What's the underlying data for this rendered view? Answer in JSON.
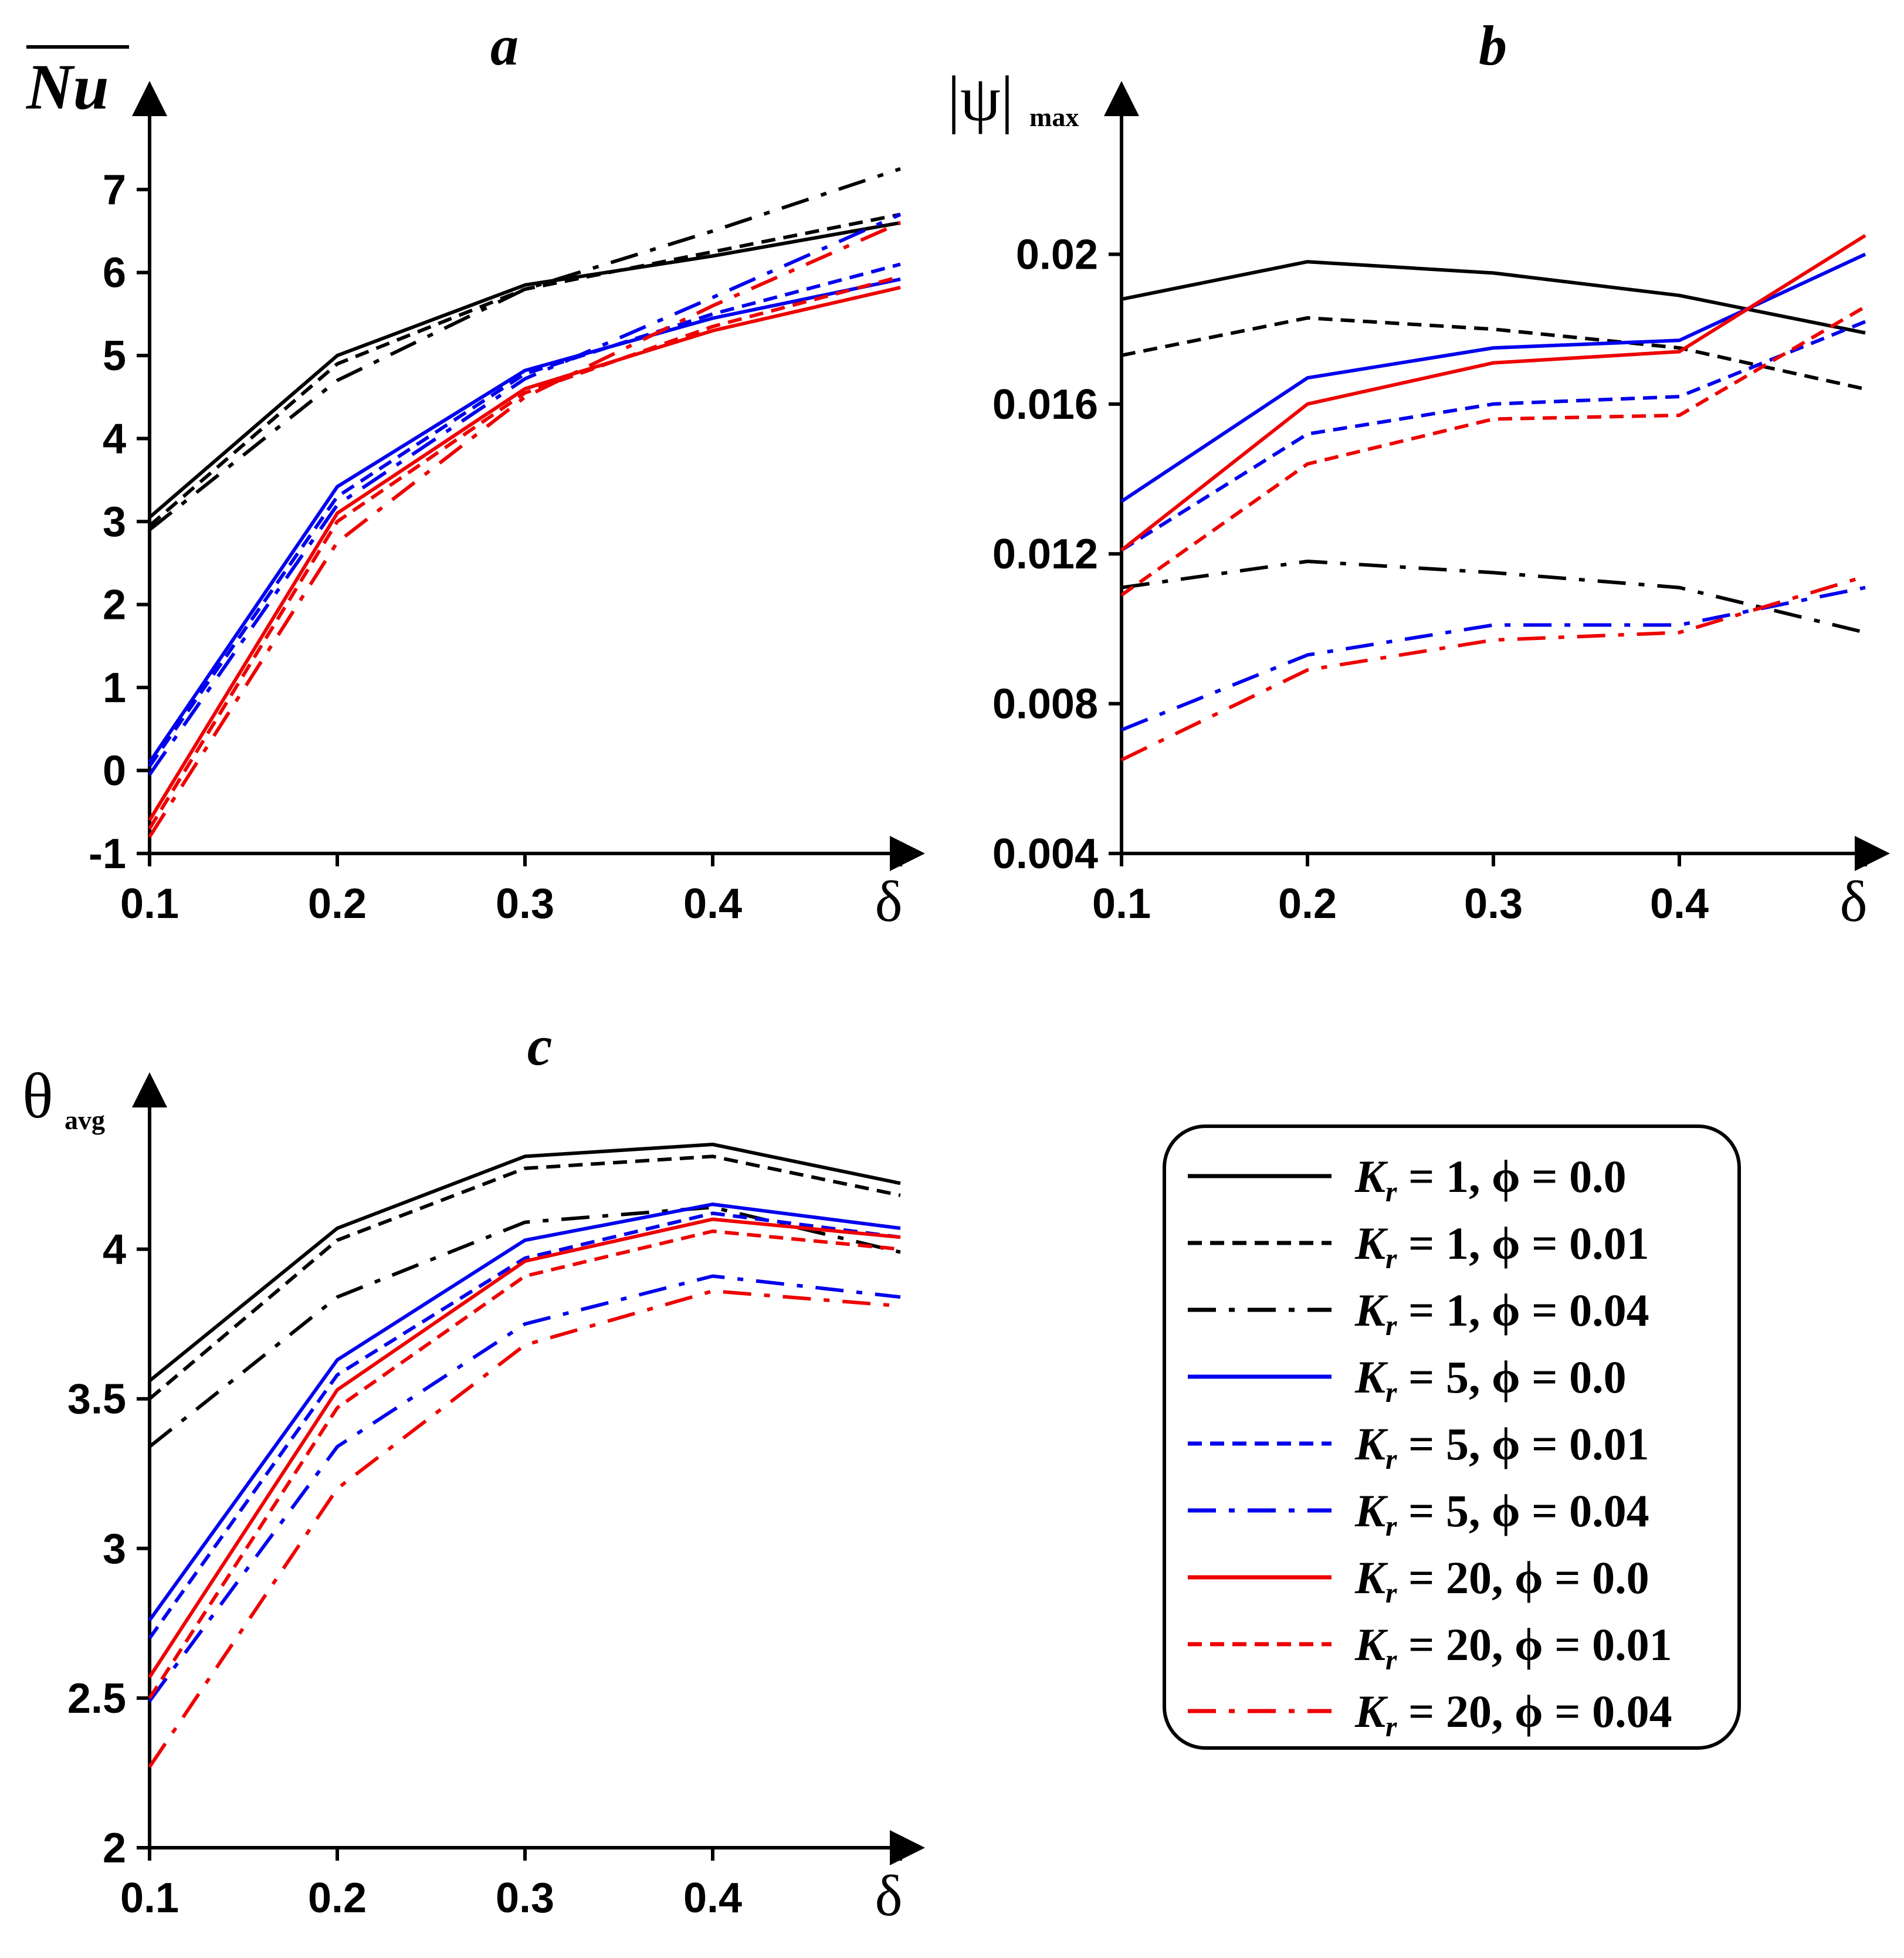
{
  "legend": [
    {
      "k": "K",
      "sub": "r",
      "rest": " = 1, ϕ = 0.0",
      "color": "#000000",
      "style": "solid"
    },
    {
      "k": "K",
      "sub": "r",
      "rest": " = 1, ϕ = 0.01",
      "color": "#000000",
      "style": "dash"
    },
    {
      "k": "K",
      "sub": "r",
      "rest": " = 1, ϕ = 0.04",
      "color": "#000000",
      "style": "dashdot"
    },
    {
      "k": "K",
      "sub": "r",
      "rest": " = 5, ϕ = 0.0",
      "color": "#0000ee",
      "style": "solid"
    },
    {
      "k": "K",
      "sub": "r",
      "rest": " = 5, ϕ = 0.01",
      "color": "#0000ee",
      "style": "dash"
    },
    {
      "k": "K",
      "sub": "r",
      "rest": " = 5, ϕ = 0.04",
      "color": "#0000ee",
      "style": "dashdot"
    },
    {
      "k": "K",
      "sub": "r",
      "rest": " = 20, ϕ = 0.0",
      "color": "#ee0000",
      "style": "solid"
    },
    {
      "k": "K",
      "sub": "r",
      "rest": " = 20, ϕ = 0.01",
      "color": "#ee0000",
      "style": "dash"
    },
    {
      "k": "K",
      "sub": "r",
      "rest": " = 20, ϕ = 0.04",
      "color": "#ee0000",
      "style": "dashdot"
    }
  ],
  "chart_data": [
    {
      "panel": "a",
      "type": "line",
      "title": "a",
      "ylabel": "Nu",
      "xlabel": "δ",
      "x": [
        0.1,
        0.2,
        0.3,
        0.4,
        0.5
      ],
      "xlim": [
        0.1,
        0.5
      ],
      "ylim": [
        -1,
        7.8
      ],
      "xticks": [
        "0.1",
        "0.2",
        "0.3",
        "0.4"
      ],
      "xtick_values": [
        0.1,
        0.2,
        0.3,
        0.4
      ],
      "yticks": [
        "-1",
        "0",
        "1",
        "2",
        "3",
        "4",
        "5",
        "6",
        "7"
      ],
      "ytick_values": [
        -1,
        0,
        1,
        2,
        3,
        4,
        5,
        6,
        7
      ],
      "series": [
        {
          "name": "Kr = 1, ϕ = 0.0",
          "values": [
            3.05,
            5.0,
            5.85,
            6.2,
            6.6
          ]
        },
        {
          "name": "Kr = 1, ϕ = 0.01",
          "values": [
            2.95,
            4.9,
            5.8,
            6.25,
            6.7
          ]
        },
        {
          "name": "Kr = 1, ϕ = 0.04",
          "values": [
            2.9,
            4.7,
            5.8,
            6.5,
            7.25
          ]
        },
        {
          "name": "Kr = 5, ϕ = 0.0",
          "values": [
            0.1,
            3.42,
            4.82,
            5.45,
            5.92
          ]
        },
        {
          "name": "Kr = 5, ϕ = 0.01",
          "values": [
            0.05,
            3.3,
            4.78,
            5.5,
            6.1
          ]
        },
        {
          "name": "Kr = 5, ϕ = 0.04",
          "values": [
            -0.05,
            3.2,
            4.72,
            5.7,
            6.7
          ]
        },
        {
          "name": "Kr = 20, ϕ = 0.0",
          "values": [
            -0.6,
            3.1,
            4.6,
            5.3,
            5.82
          ]
        },
        {
          "name": "Kr = 20, ϕ = 0.01",
          "values": [
            -0.7,
            3.0,
            4.55,
            5.35,
            5.95
          ]
        },
        {
          "name": "Kr = 20, ϕ = 0.04",
          "values": [
            -0.8,
            2.75,
            4.5,
            5.6,
            6.6
          ]
        }
      ]
    },
    {
      "panel": "b",
      "type": "line",
      "title": "b",
      "ylabel": "|ψ|",
      "ylabel_sub": "max",
      "xlabel": "δ",
      "x": [
        0.1,
        0.2,
        0.3,
        0.4,
        0.5
      ],
      "xlim": [
        0.1,
        0.5
      ],
      "ylim": [
        0.004,
        0.0235
      ],
      "xticks": [
        "0.1",
        "0.2",
        "0.3",
        "0.4"
      ],
      "xtick_values": [
        0.1,
        0.2,
        0.3,
        0.4
      ],
      "yticks": [
        "0.004",
        "0.008",
        "0.012",
        "0.016",
        "0.02"
      ],
      "ytick_values": [
        0.004,
        0.008,
        0.012,
        0.016,
        0.02
      ],
      "series": [
        {
          "name": "Kr = 1, ϕ = 0.0",
          "values": [
            0.0188,
            0.0198,
            0.0195,
            0.0189,
            0.0179
          ]
        },
        {
          "name": "Kr = 1, ϕ = 0.01",
          "values": [
            0.0173,
            0.0183,
            0.018,
            0.0175,
            0.0164
          ]
        },
        {
          "name": "Kr = 1, ϕ = 0.04",
          "values": [
            0.0111,
            0.0118,
            0.0115,
            0.0111,
            0.0099
          ]
        },
        {
          "name": "Kr = 5, ϕ = 0.0",
          "values": [
            0.0134,
            0.0167,
            0.0175,
            0.0177,
            0.02
          ]
        },
        {
          "name": "Kr = 5, ϕ = 0.01",
          "values": [
            0.0121,
            0.0152,
            0.016,
            0.0162,
            0.0182
          ]
        },
        {
          "name": "Kr = 5, ϕ = 0.04",
          "values": [
            0.0073,
            0.0093,
            0.0101,
            0.0101,
            0.0111
          ]
        },
        {
          "name": "Kr = 20, ϕ = 0.0",
          "values": [
            0.0121,
            0.016,
            0.0171,
            0.0174,
            0.0205
          ]
        },
        {
          "name": "Kr = 20, ϕ = 0.01",
          "values": [
            0.0109,
            0.0144,
            0.0156,
            0.0157,
            0.0186
          ]
        },
        {
          "name": "Kr = 20, ϕ = 0.04",
          "values": [
            0.0065,
            0.0089,
            0.0097,
            0.0099,
            0.0114
          ]
        }
      ]
    },
    {
      "panel": "c",
      "type": "line",
      "title": "c",
      "ylabel": "θ",
      "ylabel_sub": "avg",
      "xlabel": "δ",
      "x": [
        0.1,
        0.2,
        0.3,
        0.4,
        0.5
      ],
      "xlim": [
        0.1,
        0.5
      ],
      "ylim": [
        2.0,
        4.45
      ],
      "xticks": [
        "0.1",
        "0.2",
        "0.3",
        "0.4"
      ],
      "xtick_values": [
        0.1,
        0.2,
        0.3,
        0.4
      ],
      "yticks": [
        "2",
        "2.5",
        "3",
        "3.5",
        "4"
      ],
      "ytick_values": [
        2.0,
        2.5,
        3.0,
        3.5,
        4.0
      ],
      "series": [
        {
          "name": "Kr = 1, ϕ = 0.0",
          "values": [
            3.56,
            4.07,
            4.31,
            4.35,
            4.22
          ]
        },
        {
          "name": "Kr = 1, ϕ = 0.01",
          "values": [
            3.5,
            4.03,
            4.27,
            4.31,
            4.18
          ]
        },
        {
          "name": "Kr = 1, ϕ = 0.04",
          "values": [
            3.34,
            3.84,
            4.09,
            4.14,
            3.99
          ]
        },
        {
          "name": "Kr = 5, ϕ = 0.0",
          "values": [
            2.76,
            3.63,
            4.03,
            4.15,
            4.07
          ]
        },
        {
          "name": "Kr = 5, ϕ = 0.01",
          "values": [
            2.7,
            3.58,
            3.97,
            4.12,
            4.04
          ]
        },
        {
          "name": "Kr = 5, ϕ = 0.04",
          "values": [
            2.49,
            3.34,
            3.75,
            3.91,
            3.84
          ]
        },
        {
          "name": "Kr = 20, ϕ = 0.0",
          "values": [
            2.57,
            3.53,
            3.96,
            4.1,
            4.04
          ]
        },
        {
          "name": "Kr = 20, ϕ = 0.01",
          "values": [
            2.5,
            3.47,
            3.91,
            4.06,
            4.0
          ]
        },
        {
          "name": "Kr = 20, ϕ = 0.04",
          "values": [
            2.27,
            3.2,
            3.68,
            3.86,
            3.81
          ]
        }
      ]
    }
  ]
}
